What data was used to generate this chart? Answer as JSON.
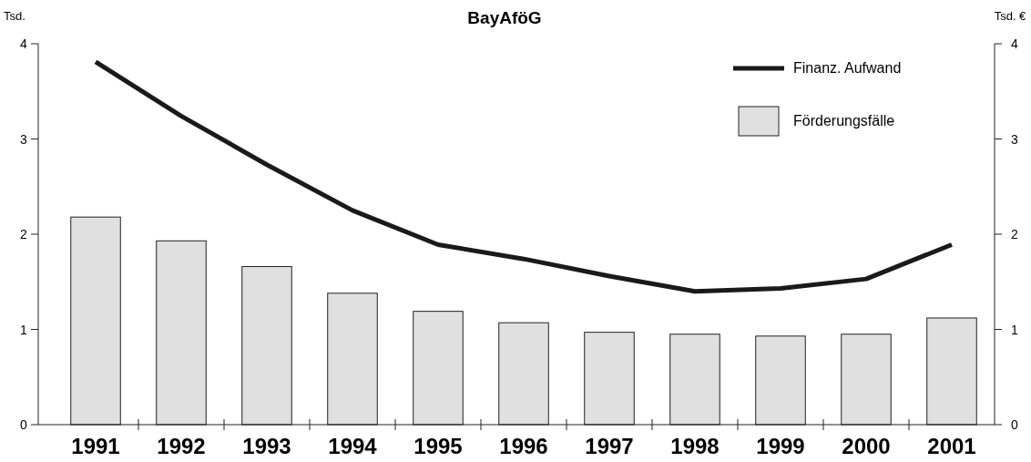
{
  "chart_data": {
    "type": "bar",
    "title": "BayAföG",
    "ylabel": "Tsd.",
    "y2label": "Tsd. €",
    "categories": [
      "1991",
      "1992",
      "1993",
      "1994",
      "1995",
      "1996",
      "1997",
      "1998",
      "1999",
      "2000",
      "2001"
    ],
    "series": [
      {
        "name": "Förderungsfälle",
        "color": "#e0e0e0",
        "values": [
          2.18,
          1.93,
          1.66,
          1.38,
          1.19,
          1.07,
          0.97,
          0.95,
          0.93,
          0.95,
          1.12
        ]
      },
      {
        "name": "Finanz. Aufwand",
        "type": "line",
        "axis": "y2",
        "color": "#1a1a1a",
        "values": [
          3.81,
          3.24,
          2.73,
          2.25,
          1.89,
          1.74,
          1.56,
          1.4,
          1.43,
          1.53,
          1.89
        ]
      }
    ],
    "ylim": [
      0,
      4
    ],
    "yticks": [
      0,
      1,
      2,
      3,
      4
    ],
    "y2lim": [
      0,
      4
    ],
    "y2ticks": [
      0,
      1,
      2,
      3,
      4
    ],
    "legend": "top right",
    "grid": false
  }
}
